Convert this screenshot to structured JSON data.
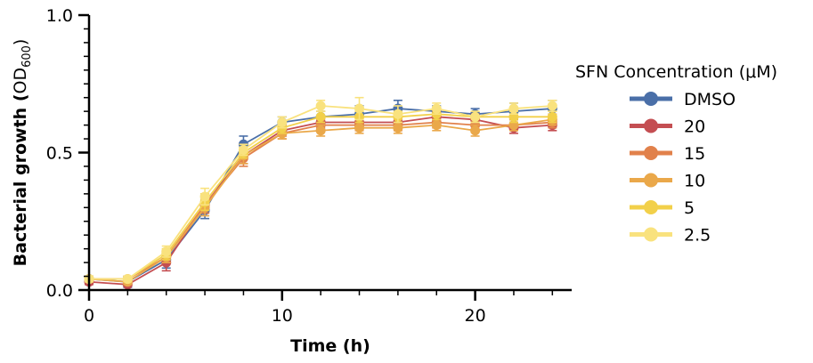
{
  "chart_data": {
    "type": "line",
    "title": "",
    "xlabel": "Time (h)",
    "ylabel_main": "Bacterial growth (",
    "ylabel_od": "OD",
    "ylabel_sub": "600",
    "ylabel_close": ")",
    "xlim": [
      0,
      25
    ],
    "ylim": [
      0,
      1.0
    ],
    "x_major_ticks": [
      0,
      10,
      20
    ],
    "x_tick_labels": [
      "0",
      "10",
      "20"
    ],
    "x_minor_step": 2,
    "y_major_ticks": [
      0,
      0.5,
      1.0
    ],
    "y_tick_labels": [
      "0.0",
      "0.5",
      "1.0"
    ],
    "y_minor_step": 0.05,
    "legend": {
      "title": "SFN Concentration (μM)",
      "placement": "right"
    },
    "x": [
      0,
      2,
      4,
      6,
      8,
      10,
      12,
      14,
      16,
      18,
      20,
      22,
      24
    ],
    "series": [
      {
        "name": "DMSO",
        "color": "#4a6fa8",
        "values": [
          0.04,
          0.03,
          0.11,
          0.29,
          0.53,
          0.61,
          0.63,
          0.64,
          0.66,
          0.65,
          0.64,
          0.65,
          0.66
        ],
        "errors": [
          0.01,
          0.02,
          0.03,
          0.03,
          0.03,
          0.02,
          0.02,
          0.03,
          0.03,
          0.02,
          0.02,
          0.03,
          0.03
        ]
      },
      {
        "name": "20",
        "color": "#c44e52",
        "values": [
          0.03,
          0.02,
          0.1,
          0.31,
          0.49,
          0.58,
          0.61,
          0.61,
          0.61,
          0.63,
          0.62,
          0.59,
          0.6
        ],
        "errors": [
          0.01,
          0.02,
          0.03,
          0.03,
          0.03,
          0.02,
          0.02,
          0.02,
          0.02,
          0.02,
          0.02,
          0.02,
          0.02
        ]
      },
      {
        "name": "15",
        "color": "#e1814b",
        "values": [
          0.04,
          0.04,
          0.12,
          0.31,
          0.48,
          0.57,
          0.6,
          0.6,
          0.6,
          0.61,
          0.6,
          0.6,
          0.61
        ],
        "errors": [
          0.01,
          0.01,
          0.02,
          0.03,
          0.03,
          0.02,
          0.02,
          0.02,
          0.02,
          0.02,
          0.02,
          0.02,
          0.02
        ]
      },
      {
        "name": "10",
        "color": "#eaa84a",
        "values": [
          0.04,
          0.03,
          0.12,
          0.3,
          0.49,
          0.57,
          0.58,
          0.59,
          0.59,
          0.6,
          0.58,
          0.6,
          0.62
        ],
        "errors": [
          0.01,
          0.01,
          0.02,
          0.03,
          0.03,
          0.02,
          0.02,
          0.02,
          0.02,
          0.02,
          0.02,
          0.02,
          0.02
        ]
      },
      {
        "name": "5",
        "color": "#f2d04a",
        "values": [
          0.04,
          0.04,
          0.13,
          0.32,
          0.5,
          0.59,
          0.63,
          0.63,
          0.63,
          0.64,
          0.63,
          0.63,
          0.63
        ],
        "errors": [
          0.01,
          0.01,
          0.02,
          0.03,
          0.02,
          0.02,
          0.02,
          0.02,
          0.02,
          0.02,
          0.02,
          0.02,
          0.02
        ]
      },
      {
        "name": "2.5",
        "color": "#f9e27e",
        "values": [
          0.04,
          0.04,
          0.14,
          0.34,
          0.51,
          0.61,
          0.67,
          0.66,
          0.64,
          0.66,
          0.63,
          0.66,
          0.67
        ],
        "errors": [
          0.01,
          0.01,
          0.02,
          0.03,
          0.02,
          0.02,
          0.02,
          0.04,
          0.03,
          0.02,
          0.02,
          0.02,
          0.02
        ]
      }
    ]
  }
}
